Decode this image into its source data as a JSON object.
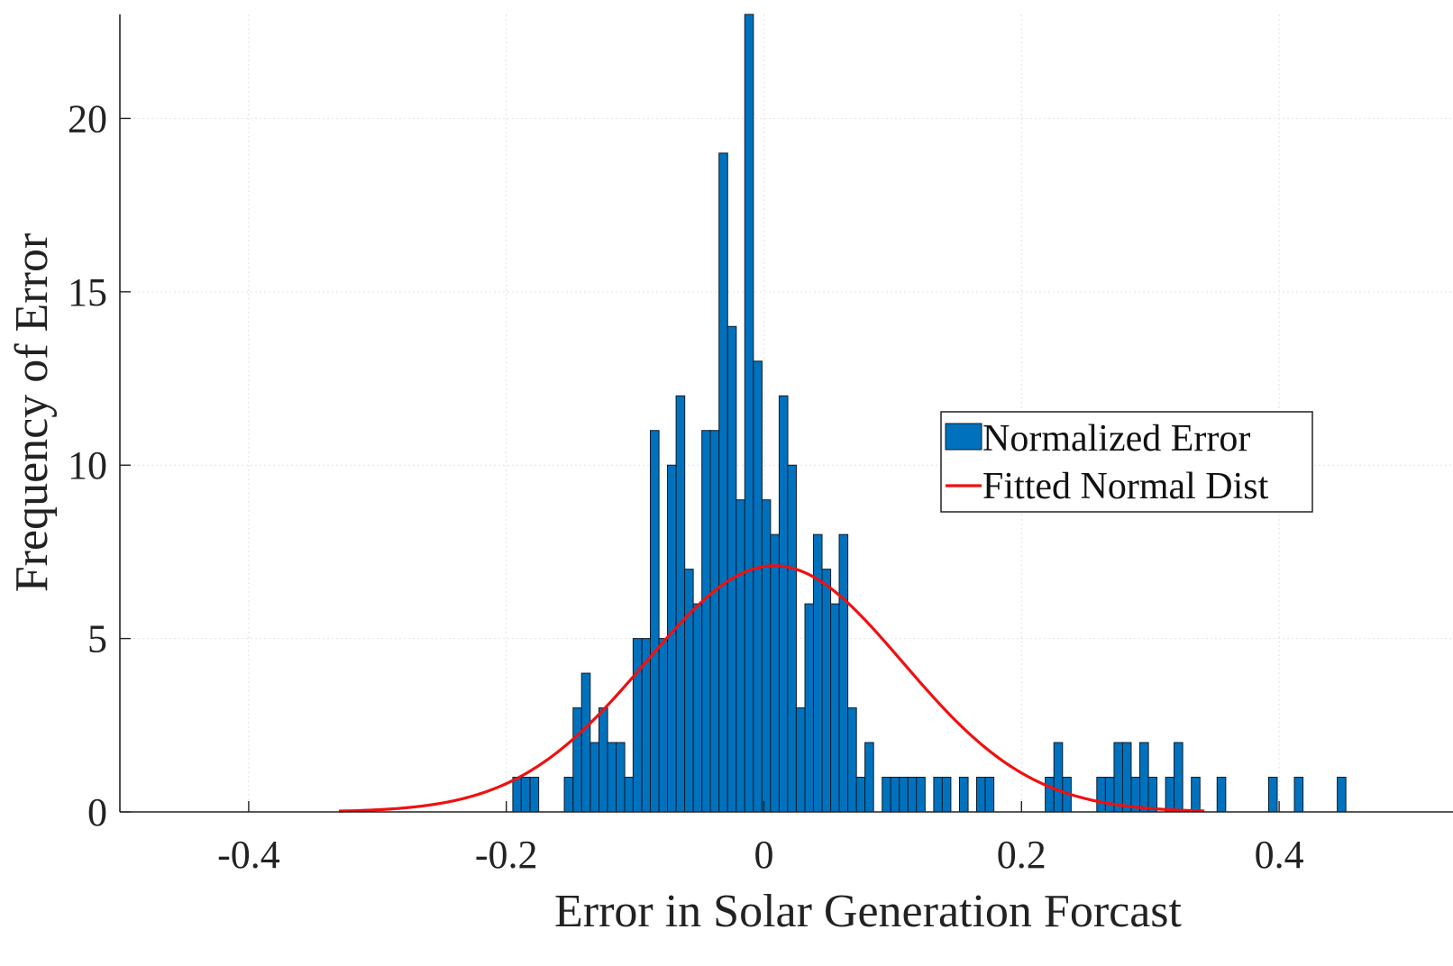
{
  "chart_data": {
    "type": "histogram",
    "xlabel": "Error in Solar Generation Forcast",
    "ylabel": "Frequency of Error",
    "xlim": [
      -0.5,
      0.535
    ],
    "ylim": [
      0,
      23
    ],
    "xticks": [
      -0.4,
      -0.2,
      0,
      0.2,
      0.4
    ],
    "xtick_labels": [
      "-0.4",
      "-0.2",
      "0",
      "0.2",
      "0.4"
    ],
    "yticks": [
      0,
      5,
      10,
      15,
      20
    ],
    "ytick_labels": [
      "0",
      "5",
      "10",
      "15",
      "20"
    ],
    "grid": true,
    "legend_position": "center-right",
    "colors": {
      "bar_fill": "#0072BD",
      "bar_edge": "#0a1a2a",
      "curve": "#ee1111",
      "grid": "#e2e2e2",
      "axis": "#222222"
    },
    "series": [
      {
        "name": "Normalized Error",
        "kind": "bar",
        "bin_width": 0.0067,
        "bins": [
          {
            "x": -0.1916,
            "count": 1
          },
          {
            "x": -0.1851,
            "count": 1
          },
          {
            "x": -0.1782,
            "count": 1
          },
          {
            "x": -0.1516,
            "count": 1
          },
          {
            "x": -0.1448,
            "count": 3
          },
          {
            "x": -0.1382,
            "count": 4
          },
          {
            "x": -0.1314,
            "count": 2
          },
          {
            "x": -0.1247,
            "count": 3
          },
          {
            "x": -0.1181,
            "count": 2
          },
          {
            "x": -0.1114,
            "count": 2
          },
          {
            "x": -0.1047,
            "count": 1
          },
          {
            "x": -0.0982,
            "count": 5
          },
          {
            "x": -0.0914,
            "count": 5
          },
          {
            "x": -0.0848,
            "count": 11
          },
          {
            "x": -0.0781,
            "count": 5
          },
          {
            "x": -0.0715,
            "count": 10
          },
          {
            "x": -0.0648,
            "count": 12
          },
          {
            "x": -0.0582,
            "count": 7
          },
          {
            "x": -0.0515,
            "count": 6
          },
          {
            "x": -0.0448,
            "count": 11
          },
          {
            "x": -0.0382,
            "count": 11
          },
          {
            "x": -0.0315,
            "count": 19
          },
          {
            "x": -0.0248,
            "count": 14
          },
          {
            "x": -0.0182,
            "count": 9
          },
          {
            "x": -0.0115,
            "count": 23
          },
          {
            "x": -0.0048,
            "count": 13
          },
          {
            "x": 0.0018,
            "count": 9
          },
          {
            "x": 0.0085,
            "count": 8
          },
          {
            "x": 0.0152,
            "count": 12
          },
          {
            "x": 0.0218,
            "count": 10
          },
          {
            "x": 0.0285,
            "count": 3
          },
          {
            "x": 0.0352,
            "count": 6
          },
          {
            "x": 0.0418,
            "count": 8
          },
          {
            "x": 0.0485,
            "count": 7
          },
          {
            "x": 0.0552,
            "count": 6
          },
          {
            "x": 0.0618,
            "count": 8
          },
          {
            "x": 0.0685,
            "count": 3
          },
          {
            "x": 0.0752,
            "count": 1
          },
          {
            "x": 0.0818,
            "count": 2
          },
          {
            "x": 0.0952,
            "count": 1
          },
          {
            "x": 0.1018,
            "count": 1
          },
          {
            "x": 0.1085,
            "count": 1
          },
          {
            "x": 0.1152,
            "count": 1
          },
          {
            "x": 0.1218,
            "count": 1
          },
          {
            "x": 0.1352,
            "count": 1
          },
          {
            "x": 0.1418,
            "count": 1
          },
          {
            "x": 0.1552,
            "count": 1
          },
          {
            "x": 0.1685,
            "count": 1
          },
          {
            "x": 0.1752,
            "count": 1
          },
          {
            "x": 0.2218,
            "count": 1
          },
          {
            "x": 0.2285,
            "count": 2
          },
          {
            "x": 0.2352,
            "count": 1
          },
          {
            "x": 0.2618,
            "count": 1
          },
          {
            "x": 0.2685,
            "count": 1
          },
          {
            "x": 0.2752,
            "count": 2
          },
          {
            "x": 0.2818,
            "count": 2
          },
          {
            "x": 0.2885,
            "count": 1
          },
          {
            "x": 0.2952,
            "count": 2
          },
          {
            "x": 0.3018,
            "count": 1
          },
          {
            "x": 0.3152,
            "count": 1
          },
          {
            "x": 0.3218,
            "count": 2
          },
          {
            "x": 0.3352,
            "count": 1
          },
          {
            "x": 0.3552,
            "count": 1
          },
          {
            "x": 0.3952,
            "count": 1
          },
          {
            "x": 0.4152,
            "count": 1
          },
          {
            "x": 0.4485,
            "count": 1
          }
        ]
      },
      {
        "name": "Fitted Normal Dist",
        "kind": "line",
        "distribution": "normal",
        "mean": 0.008,
        "sigma": 0.1,
        "peak": 7.1,
        "x_range": [
          -0.33,
          0.342
        ]
      }
    ]
  }
}
